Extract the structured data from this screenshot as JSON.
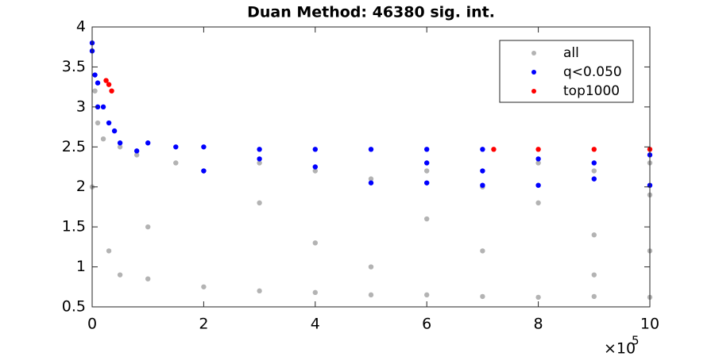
{
  "chart_data": {
    "type": "scatter",
    "title": "Duan Method: 46380 sig. int.",
    "xlim": [
      0,
      1000000
    ],
    "xticks": [
      {
        "value": 0,
        "label": "0"
      },
      {
        "value": 200000,
        "label": "2"
      },
      {
        "value": 400000,
        "label": "4"
      },
      {
        "value": 600000,
        "label": "6"
      },
      {
        "value": 800000,
        "label": "8"
      },
      {
        "value": 1000000,
        "label": "10"
      }
    ],
    "x_multiplier": {
      "base": "×10",
      "exponent": "5"
    },
    "ylim": [
      0.5,
      4
    ],
    "yticks": [
      0.5,
      1,
      1.5,
      2,
      2.5,
      3,
      3.5,
      4
    ],
    "legend": "northeast",
    "series": [
      {
        "name": "all",
        "color": "#b3b3b3",
        "x": [
          0,
          0,
          5000,
          10000,
          20000,
          30000,
          50000,
          50000,
          80000,
          100000,
          100000,
          150000,
          200000,
          200000,
          300000,
          300000,
          300000,
          400000,
          400000,
          400000,
          500000,
          500000,
          500000,
          600000,
          600000,
          600000,
          700000,
          700000,
          700000,
          800000,
          800000,
          800000,
          900000,
          900000,
          900000,
          900000,
          1000000,
          1000000,
          1000000,
          1000000
        ],
        "values": [
          3.7,
          2.0,
          3.2,
          2.8,
          2.6,
          1.2,
          0.9,
          2.5,
          2.4,
          0.85,
          1.5,
          2.3,
          0.75,
          2.2,
          0.7,
          1.8,
          2.3,
          0.68,
          1.3,
          2.2,
          0.65,
          1.0,
          2.1,
          0.65,
          1.6,
          2.2,
          0.63,
          1.2,
          2.0,
          0.62,
          1.8,
          2.3,
          0.63,
          0.9,
          1.4,
          2.2,
          0.62,
          1.2,
          1.9,
          2.3
        ]
      },
      {
        "name": "q<0.050",
        "color": "#0000ff",
        "x": [
          0,
          0,
          5000,
          10000,
          10000,
          20000,
          30000,
          40000,
          50000,
          80000,
          100000,
          150000,
          200000,
          200000,
          300000,
          300000,
          400000,
          400000,
          500000,
          500000,
          600000,
          600000,
          600000,
          700000,
          700000,
          700000,
          800000,
          800000,
          900000,
          900000,
          1000000,
          1000000
        ],
        "values": [
          3.8,
          3.7,
          3.4,
          3.3,
          3.0,
          3.0,
          2.8,
          2.7,
          2.55,
          2.45,
          2.55,
          2.5,
          2.5,
          2.2,
          2.47,
          2.35,
          2.47,
          2.25,
          2.47,
          2.05,
          2.47,
          2.3,
          2.05,
          2.47,
          2.2,
          2.02,
          2.35,
          2.02,
          2.3,
          2.1,
          2.4,
          2.02
        ]
      },
      {
        "name": "top1000",
        "color": "#ff0000",
        "x": [
          25000,
          30000,
          35000,
          720000,
          800000,
          900000,
          1000000
        ],
        "values": [
          3.33,
          3.28,
          3.2,
          2.47,
          2.47,
          2.47,
          2.47
        ]
      }
    ]
  }
}
